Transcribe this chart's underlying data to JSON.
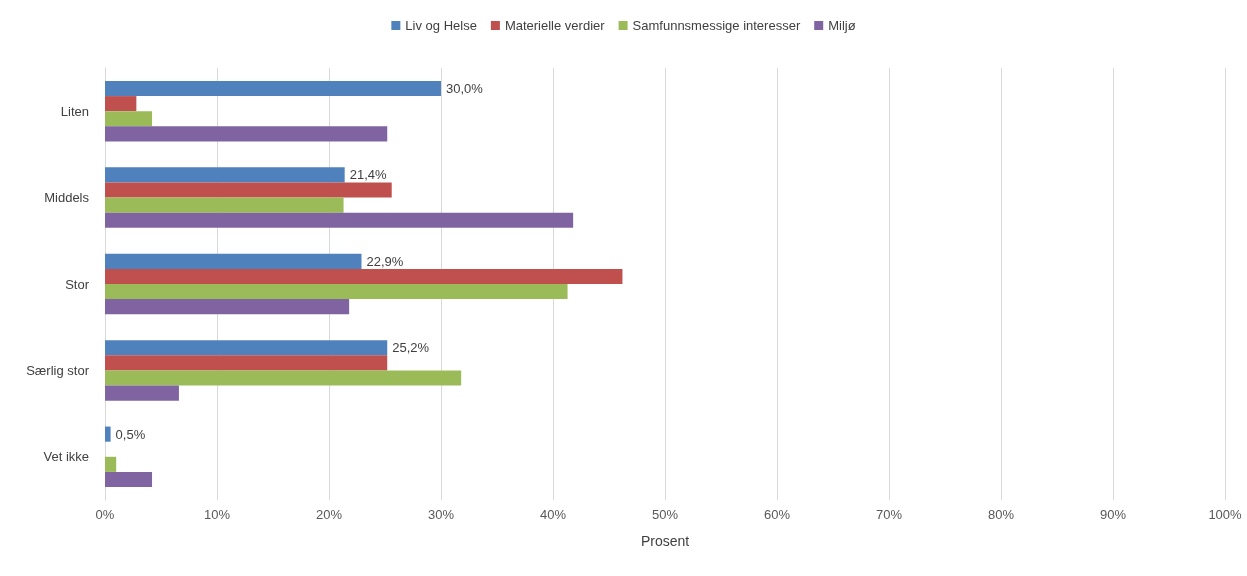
{
  "chart_data": {
    "type": "bar",
    "orientation": "horizontal",
    "xlabel": "Prosent",
    "categories": [
      "Liten",
      "Middels",
      "Stor",
      "Særlig stor",
      "Vet ikke"
    ],
    "series": [
      {
        "name": "Liv og Helse",
        "color": "#4f81bd",
        "values": [
          30.0,
          21.4,
          22.9,
          25.2,
          0.5
        ],
        "value_labels": [
          "30,0%",
          "21,4%",
          "22,9%",
          "25,2%",
          "0,5%"
        ]
      },
      {
        "name": "Materielle verdier",
        "color": "#c0504d",
        "values": [
          2.8,
          25.6,
          46.2,
          25.2,
          0
        ]
      },
      {
        "name": "Samfunnsmessige interesser",
        "color": "#9bbb59",
        "values": [
          4.2,
          21.3,
          41.3,
          31.8,
          1.0
        ]
      },
      {
        "name": "Miljø",
        "color": "#8064a2",
        "values": [
          25.2,
          41.8,
          21.8,
          6.6,
          4.2
        ]
      }
    ],
    "xlim": [
      0,
      100
    ],
    "xticks": [
      {
        "value": 0,
        "label": "0%"
      },
      {
        "value": 10,
        "label": "10%"
      },
      {
        "value": 20,
        "label": "20%"
      },
      {
        "value": 30,
        "label": "30%"
      },
      {
        "value": 40,
        "label": "40%"
      },
      {
        "value": 50,
        "label": "50%"
      },
      {
        "value": 60,
        "label": "60%"
      },
      {
        "value": 70,
        "label": "70%"
      },
      {
        "value": 80,
        "label": "80%"
      },
      {
        "value": 90,
        "label": "90%"
      },
      {
        "value": 100,
        "label": "100%"
      }
    ],
    "grid": "x",
    "legend": "top"
  }
}
